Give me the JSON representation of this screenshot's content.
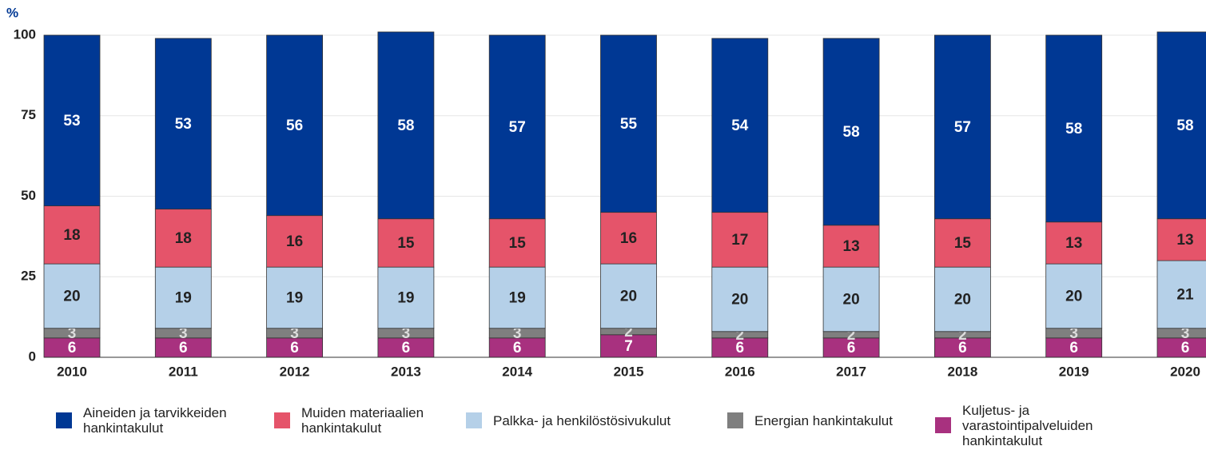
{
  "chart_data": {
    "type": "stacked_bar",
    "y_label": "%",
    "categories": [
      "2010",
      "2011",
      "2012",
      "2013",
      "2014",
      "2015",
      "2016",
      "2017",
      "2018",
      "2019",
      "2020"
    ],
    "ylim": [
      0,
      100
    ],
    "yticks": [
      0,
      25,
      50,
      75,
      100
    ],
    "grid": true,
    "series": [
      {
        "name": "Aineiden ja tarvikkeiden hankintakulut",
        "color": "#003894",
        "values": [
          53,
          53,
          56,
          58,
          57,
          55,
          54,
          58,
          57,
          58,
          58
        ]
      },
      {
        "name": "Muiden materiaalien hankintakulut",
        "color": "#e5546a",
        "values": [
          18,
          18,
          16,
          15,
          15,
          16,
          17,
          13,
          15,
          13,
          13
        ]
      },
      {
        "name": "Palkka- ja henkilöstösivukulut",
        "color": "#b5d0e8",
        "values": [
          20,
          19,
          19,
          19,
          19,
          20,
          20,
          20,
          20,
          20,
          21
        ]
      },
      {
        "name": "Energian hankintakulut",
        "color": "#7f7f7f",
        "values": [
          3,
          3,
          3,
          3,
          3,
          2,
          2,
          2,
          2,
          3,
          3
        ]
      },
      {
        "name": "Kuljetus- ja varastointipalveluiden hankintakulut",
        "color": "#a8317f",
        "values": [
          6,
          6,
          6,
          6,
          6,
          7,
          6,
          6,
          6,
          6,
          6
        ]
      }
    ]
  }
}
